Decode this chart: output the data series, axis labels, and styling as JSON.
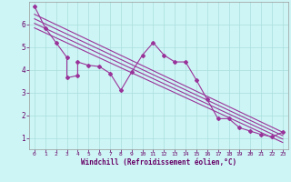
{
  "xlabel": "Windchill (Refroidissement éolien,°C)",
  "bg_color": "#cef5f5",
  "line_color": "#993399",
  "xlim": [
    -0.5,
    23.5
  ],
  "ylim": [
    0.5,
    7.0
  ],
  "x_ticks": [
    0,
    1,
    2,
    3,
    4,
    5,
    6,
    7,
    8,
    9,
    10,
    11,
    12,
    13,
    14,
    15,
    16,
    17,
    18,
    19,
    20,
    21,
    22,
    23
  ],
  "y_ticks": [
    1,
    2,
    3,
    4,
    5,
    6
  ],
  "scatter_x": [
    0,
    1,
    2,
    3,
    3,
    4,
    4,
    5,
    6,
    7,
    8,
    9,
    10,
    11,
    12,
    13,
    14,
    15,
    16,
    17,
    18,
    19,
    20,
    21,
    22,
    23
  ],
  "scatter_y": [
    6.8,
    5.85,
    5.2,
    4.55,
    3.65,
    3.75,
    4.35,
    4.2,
    4.15,
    3.85,
    3.1,
    3.9,
    4.65,
    5.2,
    4.65,
    4.35,
    4.35,
    3.55,
    2.7,
    1.85,
    1.85,
    1.45,
    1.3,
    1.15,
    1.05,
    1.25
  ],
  "reg_lines": [
    {
      "x0": 0,
      "y0": 6.45,
      "x1": 23,
      "y1": 1.25
    },
    {
      "x0": 0,
      "y0": 6.25,
      "x1": 23,
      "y1": 1.1
    },
    {
      "x0": 0,
      "y0": 6.05,
      "x1": 23,
      "y1": 0.95
    },
    {
      "x0": 0,
      "y0": 5.85,
      "x1": 23,
      "y1": 0.8
    }
  ],
  "grid_color": "#aadddd",
  "spine_color": "#999999"
}
